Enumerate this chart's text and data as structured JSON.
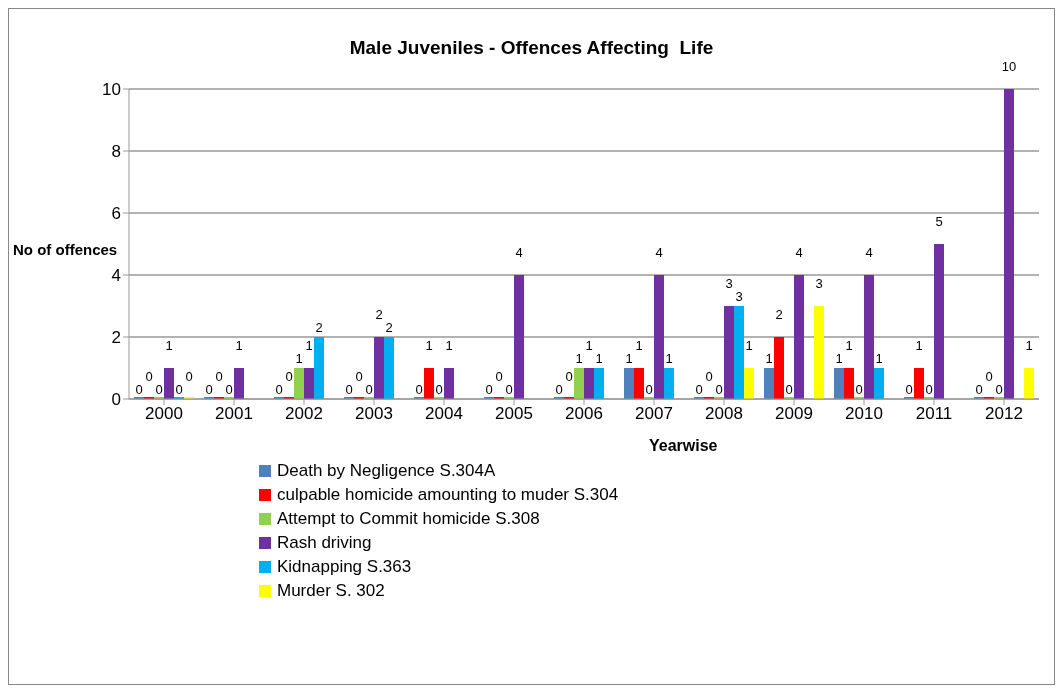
{
  "chart_data": {
    "type": "bar",
    "title": "Male Juveniles - Offences Affecting  Life",
    "xlabel": "Yearwise",
    "ylabel": "No of offences",
    "categories": [
      "2000",
      "2001",
      "2002",
      "2003",
      "2004",
      "2005",
      "2006",
      "2007",
      "2008",
      "2009",
      "2010",
      "2011",
      "2012"
    ],
    "series": [
      {
        "name": "Death by Negligence S.304A",
        "color": "#4f81bd",
        "values": [
          0,
          0,
          0,
          0,
          0,
          0,
          0,
          1,
          0,
          1,
          1,
          0,
          0
        ]
      },
      {
        "name": "culpable homicide amounting to muder S.304",
        "color": "#ff0000",
        "values": [
          0,
          0,
          0,
          0,
          1,
          0,
          0,
          1,
          0,
          2,
          1,
          1,
          0
        ]
      },
      {
        "name": "Attempt to Commit homicide S.308",
        "color": "#92d050",
        "values": [
          0,
          0,
          1,
          0,
          0,
          0,
          1,
          0,
          0,
          0,
          0,
          0,
          0
        ]
      },
      {
        "name": "Rash driving",
        "color": "#7030a0",
        "values": [
          1,
          1,
          1,
          2,
          1,
          4,
          1,
          4,
          3,
          4,
          4,
          5,
          10
        ]
      },
      {
        "name": "Kidnapping S.363",
        "color": "#00b0f0",
        "values": [
          0,
          null,
          2,
          2,
          null,
          null,
          1,
          1,
          3,
          null,
          1,
          null,
          null
        ]
      },
      {
        "name": "Murder S. 302",
        "color": "#ffff00",
        "values": [
          0,
          null,
          null,
          null,
          null,
          null,
          null,
          null,
          1,
          3,
          null,
          null,
          1
        ]
      }
    ],
    "ylim": [
      0,
      10
    ],
    "yticks": [
      0,
      2,
      4,
      6,
      8,
      10
    ],
    "grid": "y",
    "legend": "bottom",
    "data_labels": true
  }
}
